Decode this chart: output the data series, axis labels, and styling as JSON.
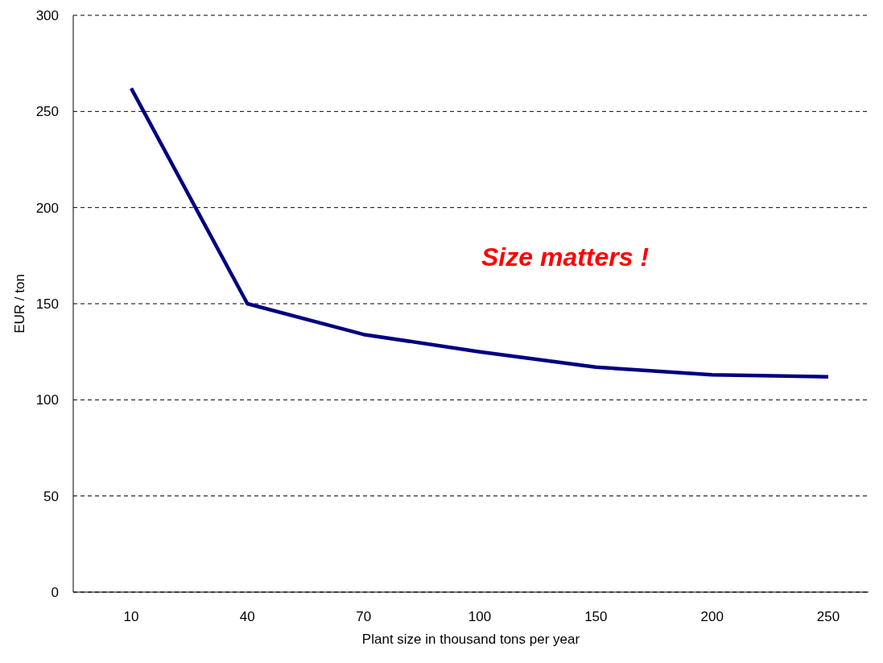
{
  "chart_data": {
    "type": "line",
    "xlabel": "Plant size in thousand tons per year",
    "ylabel": "EUR / ton",
    "categories": [
      "10",
      "40",
      "70",
      "100",
      "150",
      "200",
      "250"
    ],
    "series": [
      {
        "color": "#000080",
        "values": [
          262,
          150,
          134,
          125,
          117,
          113,
          112
        ]
      }
    ],
    "ylim": [
      0,
      300
    ],
    "yticks": [
      0,
      50,
      100,
      150,
      200,
      250,
      300
    ],
    "grid": "y",
    "legend": false,
    "marker": "none",
    "line_style": "solid",
    "annotations": [
      "Size matters !"
    ]
  }
}
